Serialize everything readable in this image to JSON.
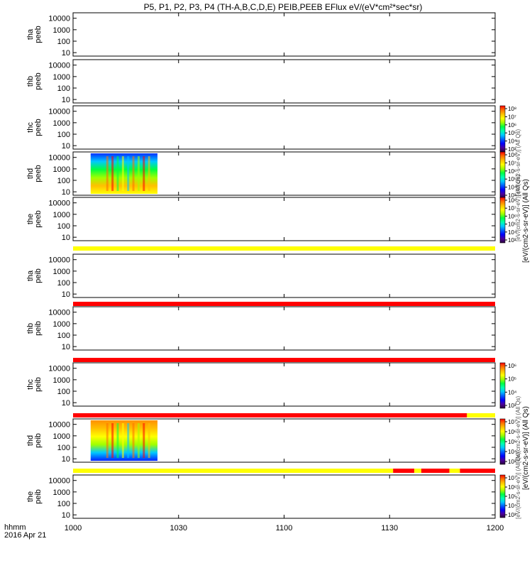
{
  "title": "P5, P1, P2, P3, P4 (TH-A,B,C,D,E) PEIB,PEEB EFlux eV/(eV*cm²*sec*sr)",
  "time_axis": {
    "label": "hhmm",
    "date": "2016 Apr 21",
    "ticks": [
      "1000",
      "1030",
      "1100",
      "1130",
      "1200"
    ]
  },
  "colorbars": [
    {
      "label": "[eV/(cm2-s-sr-eV)] (All Qs)",
      "ticks": [
        "10³",
        "10⁴",
        "10⁵",
        "10⁶",
        "10⁷",
        "10⁸"
      ]
    },
    {
      "label": "[eV/(cm2-s-sr-eV)] (All Qs)",
      "ticks": [
        "10³",
        "10⁴",
        "10⁵",
        "10⁶",
        "10⁷",
        "10⁸"
      ]
    },
    {
      "label": "[eV/(cm2-s-sr-eV)] (All Qs)",
      "ticks": [
        "10³",
        "10⁴",
        "10⁵",
        "10⁶",
        "10⁷",
        "10⁸"
      ]
    },
    {
      "label": "[eV/(cm2-s-sr-eV)] (All Qs)",
      "ticks": [
        "10³",
        "10⁴",
        "10⁵",
        "10⁶"
      ]
    },
    {
      "label": "[eV/(cm2-s-sr-eV)] (All Qs)",
      "ticks": [
        "10³",
        "10⁴",
        "10⁵",
        "10⁶",
        "10⁷"
      ]
    },
    {
      "label": "[eV/(cm2-s-sr-eV)] (All Qs)",
      "ticks": [
        "10³",
        "10⁴",
        "10⁵",
        "10⁶",
        "10⁷"
      ]
    }
  ],
  "colors": {
    "flag_yellow": "#ffff00",
    "flag_red": "#ff0000",
    "colorscale": [
      "#2a0038",
      "#4a00a0",
      "#0000ff",
      "#0060ff",
      "#00c8ff",
      "#00ffb0",
      "#00ff40",
      "#9fff00",
      "#ffff00",
      "#ffc000",
      "#ff7000",
      "#ff0000"
    ]
  },
  "chart_data": {
    "type": "heatmap",
    "x_range": [
      "1000",
      "1200"
    ],
    "y_scale": "log",
    "y_range": [
      5,
      30000
    ],
    "y_ticks": [
      "10000",
      "1000",
      "100",
      "10"
    ],
    "panels": [
      {
        "probe": "tha",
        "product": "peeb",
        "data_start": null,
        "data_end": null
      },
      {
        "probe": "thb",
        "product": "peeb",
        "data_start": null,
        "data_end": null
      },
      {
        "probe": "thc",
        "product": "peeb",
        "data_start": null,
        "data_end": null
      },
      {
        "probe": "thd",
        "product": "peeb",
        "data_start": "1005",
        "data_end": "1024"
      },
      {
        "probe": "the",
        "product": "peeb",
        "data_start": null,
        "data_end": null
      },
      {
        "probe": "tha",
        "product": "peib",
        "data_start": null,
        "data_end": null
      },
      {
        "probe": "thb",
        "product": "peib",
        "data_start": null,
        "data_end": null
      },
      {
        "probe": "thc",
        "product": "peib",
        "data_start": null,
        "data_end": null
      },
      {
        "probe": "thd",
        "product": "peib",
        "data_start": "1005",
        "data_end": "1024"
      },
      {
        "probe": "the",
        "product": "peib",
        "data_start": null,
        "data_end": null
      }
    ],
    "flag_bars": [
      {
        "after_panel": 4,
        "segments": [
          {
            "from": "1000",
            "to": "1200",
            "color": "yellow"
          }
        ]
      },
      {
        "after_panel": 5,
        "segments": [
          {
            "from": "1000",
            "to": "1200",
            "color": "red"
          }
        ]
      },
      {
        "after_panel": 6,
        "segments": [
          {
            "from": "1000",
            "to": "1200",
            "color": "red"
          }
        ]
      },
      {
        "after_panel": 7,
        "segments": [
          {
            "from": "1000",
            "to": "1152",
            "color": "red"
          },
          {
            "from": "1152",
            "to": "1200",
            "color": "yellow"
          }
        ]
      },
      {
        "after_panel": 8,
        "segments": [
          {
            "from": "1000",
            "to": "1131",
            "color": "yellow"
          },
          {
            "from": "1131",
            "to": "1137",
            "color": "red"
          },
          {
            "from": "1137",
            "to": "1139",
            "color": "yellow"
          },
          {
            "from": "1139",
            "to": "1147",
            "color": "red"
          },
          {
            "from": "1147",
            "to": "1150",
            "color": "yellow"
          },
          {
            "from": "1150",
            "to": "1200",
            "color": "red"
          }
        ]
      }
    ]
  }
}
